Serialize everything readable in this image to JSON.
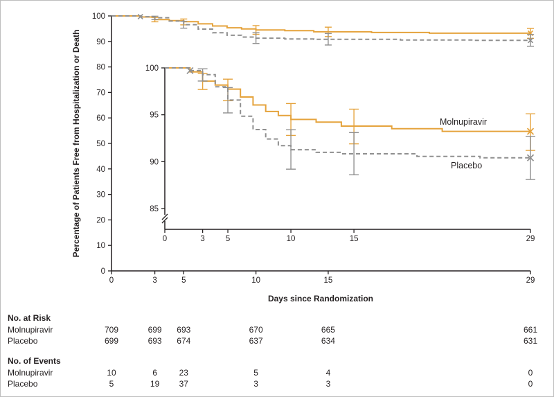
{
  "figure": {
    "ink_color": "#231f20",
    "background": "#ffffff"
  },
  "chart_data": {
    "type": "line",
    "subtype": "kaplan-meier-step-with-inset",
    "title": "",
    "xlabel": "Days since Randomization",
    "ylabel": "Percentage of Patients Free from Hospitalization or Death",
    "xlim": [
      0,
      29
    ],
    "xticks": [
      0,
      3,
      5,
      10,
      15,
      29
    ],
    "grid": false,
    "legend_position": "inline-right",
    "main_axis": {
      "ylim": [
        0,
        100
      ],
      "yticks": [
        0,
        10,
        20,
        30,
        40,
        50,
        60,
        70,
        80,
        90,
        100
      ]
    },
    "inset_axis": {
      "ylim": [
        85,
        100
      ],
      "yticks": [
        85,
        90,
        95,
        100
      ],
      "axis_break": true
    },
    "series": [
      {
        "name": "Molnupiravir",
        "color": "#E5A33C",
        "dash": "solid",
        "steps": [
          [
            0,
            100
          ],
          [
            2,
            99.58
          ],
          [
            3,
            98.59
          ],
          [
            4,
            98.17
          ],
          [
            5,
            97.74
          ],
          [
            6,
            96.9
          ],
          [
            7,
            96.05
          ],
          [
            8,
            95.35
          ],
          [
            9,
            94.92
          ],
          [
            10,
            94.5
          ],
          [
            12,
            94.22
          ],
          [
            14,
            93.79
          ],
          [
            18,
            93.51
          ],
          [
            22,
            93.23
          ],
          [
            29,
            93.23
          ]
        ],
        "error_bars": [
          {
            "day": 3,
            "lo": 97.7,
            "hi": 99.4
          },
          {
            "day": 5,
            "lo": 96.5,
            "hi": 98.8
          },
          {
            "day": 10,
            "lo": 92.8,
            "hi": 96.2
          },
          {
            "day": 15,
            "lo": 91.9,
            "hi": 95.6
          },
          {
            "day": 29,
            "lo": 91.2,
            "hi": 95.1
          }
        ],
        "censor_marks": [
          {
            "day": 29,
            "value": 93.23
          }
        ]
      },
      {
        "name": "Placebo",
        "color": "#8F8F8F",
        "dash": "dashed",
        "steps": [
          [
            0,
            100
          ],
          [
            2,
            99.71
          ],
          [
            3,
            99.28
          ],
          [
            4,
            97.99
          ],
          [
            5,
            96.57
          ],
          [
            6,
            94.85
          ],
          [
            7,
            93.42
          ],
          [
            8,
            92.42
          ],
          [
            9,
            91.7
          ],
          [
            10,
            91.27
          ],
          [
            12,
            90.99
          ],
          [
            14,
            90.84
          ],
          [
            20,
            90.56
          ],
          [
            25,
            90.41
          ],
          [
            29,
            90.41
          ]
        ],
        "error_bars": [
          {
            "day": 3,
            "lo": 98.6,
            "hi": 99.9
          },
          {
            "day": 5,
            "lo": 95.2,
            "hi": 97.9
          },
          {
            "day": 10,
            "lo": 89.2,
            "hi": 93.4
          },
          {
            "day": 15,
            "lo": 88.6,
            "hi": 93.1
          },
          {
            "day": 29,
            "lo": 88.1,
            "hi": 92.7
          }
        ],
        "censor_marks": [
          {
            "day": 2,
            "value": 99.71
          },
          {
            "day": 29,
            "value": 90.41
          }
        ]
      }
    ]
  },
  "tables": {
    "columns_days": [
      0,
      3,
      5,
      10,
      15,
      29
    ],
    "at_risk": {
      "title": "No. at Risk",
      "rows": [
        {
          "label": "Molnupiravir",
          "values": [
            709,
            699,
            693,
            670,
            665,
            661
          ]
        },
        {
          "label": "Placebo",
          "values": [
            699,
            693,
            674,
            637,
            634,
            631
          ]
        }
      ]
    },
    "events": {
      "title": "No. of Events",
      "rows": [
        {
          "label": "Molnupiravir",
          "values": [
            10,
            6,
            23,
            5,
            4,
            0
          ]
        },
        {
          "label": "Placebo",
          "values": [
            5,
            19,
            37,
            3,
            3,
            0
          ]
        }
      ]
    }
  }
}
